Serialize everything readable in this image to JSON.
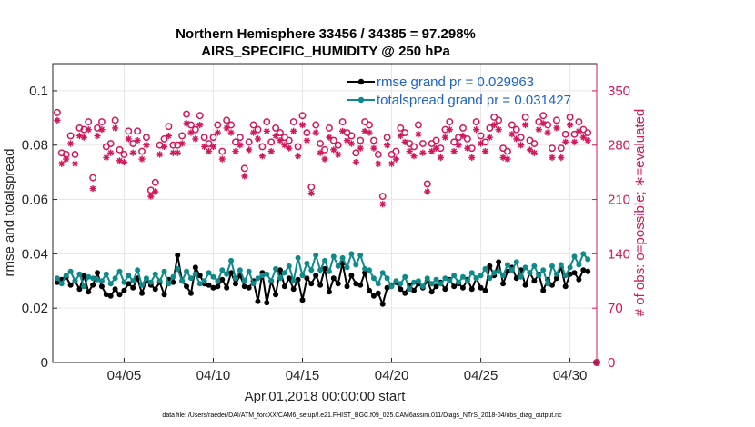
{
  "chart_data": {
    "type": "line",
    "title": "Northern Hemisphere 33456 / 34385 = 97.298%",
    "subtitle": "AIRS_SPECIFIC_HUMIDITY @ 250 hPa",
    "xlabel": "Apr.01,2018 00:00:00 start",
    "ylabel": "rmse and totalspread",
    "y2label": "# of obs: o=possible; ∗=evaluated",
    "footnote": "data file: /Users/raeder/DAI/ATM_forcXX/CAM6_setup/f.e21.FHIST_BGC.f09_025.CAM6assim.011/Diags_NTrS_2018-04/obs_diag_output.nc",
    "xlim": [
      1.0,
      31.5
    ],
    "ylim": [
      0,
      0.11
    ],
    "y2lim": [
      0,
      385
    ],
    "x_ticks": [
      5,
      10,
      15,
      20,
      25,
      30
    ],
    "x_tick_labels": [
      "04/05",
      "04/10",
      "04/15",
      "04/20",
      "04/25",
      "04/30"
    ],
    "y_ticks": [
      0,
      0.02,
      0.04,
      0.06,
      0.08,
      0.1
    ],
    "y_tick_labels": [
      "0",
      "0.02",
      "0.04",
      "0.06",
      "0.08",
      "0.1"
    ],
    "y2_ticks": [
      0,
      70,
      140,
      210,
      280,
      350
    ],
    "y2_tick_labels": [
      "0",
      "70",
      "140",
      "210",
      "280",
      "350"
    ],
    "grid": true,
    "legend_position": "top-right",
    "colors": {
      "rmse": "#000000",
      "spread": "#0e8a8a",
      "obs": "#d3175b",
      "axis": "#262626"
    },
    "series": [
      {
        "name": "rmse grand pr = 0.029963",
        "axis": "left",
        "x": [
          1.25,
          1.5,
          1.75,
          2.0,
          2.25,
          2.5,
          2.75,
          3.0,
          3.25,
          3.5,
          3.75,
          4.0,
          4.25,
          4.5,
          4.75,
          5.0,
          5.25,
          5.5,
          5.75,
          6.0,
          6.25,
          6.5,
          6.75,
          7.0,
          7.25,
          7.5,
          7.75,
          8.0,
          8.25,
          8.5,
          8.75,
          9.0,
          9.25,
          9.5,
          9.75,
          10.0,
          10.25,
          10.5,
          10.75,
          11.0,
          11.25,
          11.5,
          11.75,
          12.0,
          12.25,
          12.5,
          12.75,
          13.0,
          13.25,
          13.5,
          13.75,
          14.0,
          14.25,
          14.5,
          14.75,
          15.0,
          15.25,
          15.5,
          15.75,
          16.0,
          16.25,
          16.5,
          16.75,
          17.0,
          17.25,
          17.5,
          17.75,
          18.0,
          18.25,
          18.5,
          18.75,
          19.0,
          19.25,
          19.5,
          19.75,
          20.0,
          20.25,
          20.5,
          20.75,
          21.0,
          21.25,
          21.5,
          21.75,
          22.0,
          22.25,
          22.5,
          22.75,
          23.0,
          23.25,
          23.5,
          23.75,
          24.0,
          24.25,
          24.5,
          24.75,
          25.0,
          25.25,
          25.5,
          25.75,
          26.0,
          26.25,
          26.5,
          26.75,
          27.0,
          27.25,
          27.5,
          27.75,
          28.0,
          28.25,
          28.5,
          28.75,
          29.0,
          29.25,
          29.5,
          29.75,
          30.0,
          30.25,
          30.5,
          30.75,
          31.0
        ],
        "values": [
          0.0295,
          0.0305,
          0.0315,
          0.0285,
          0.03,
          0.027,
          0.032,
          0.026,
          0.0285,
          0.033,
          0.028,
          0.025,
          0.0245,
          0.027,
          0.025,
          0.0265,
          0.029,
          0.0275,
          0.031,
          0.0255,
          0.03,
          0.0285,
          0.027,
          0.0295,
          0.025,
          0.0305,
          0.0295,
          0.0395,
          0.03,
          0.028,
          0.0255,
          0.035,
          0.032,
          0.029,
          0.0285,
          0.0275,
          0.028,
          0.0305,
          0.0275,
          0.033,
          0.029,
          0.032,
          0.028,
          0.0275,
          0.03,
          0.0225,
          0.033,
          0.022,
          0.03,
          0.025,
          0.034,
          0.028,
          0.031,
          0.027,
          0.0305,
          0.023,
          0.031,
          0.029,
          0.032,
          0.0285,
          0.0345,
          0.026,
          0.031,
          0.029,
          0.0365,
          0.028,
          0.032,
          0.029,
          0.0285,
          0.033,
          0.0265,
          0.0245,
          0.0255,
          0.0215,
          0.0275,
          0.0285,
          0.0295,
          0.027,
          0.0255,
          0.0285,
          0.0265,
          0.029,
          0.0275,
          0.03,
          0.026,
          0.028,
          0.0295,
          0.027,
          0.0305,
          0.028,
          0.029,
          0.0275,
          0.0305,
          0.027,
          0.031,
          0.0275,
          0.0265,
          0.0355,
          0.032,
          0.037,
          0.029,
          0.0335,
          0.035,
          0.031,
          0.034,
          0.0285,
          0.033,
          0.03,
          0.0325,
          0.0265,
          0.0305,
          0.0285,
          0.031,
          0.035,
          0.028,
          0.0325,
          0.033,
          0.0305,
          0.034,
          0.0335
        ]
      },
      {
        "name": "totalspread grand pr = 0.031427",
        "axis": "left",
        "x": [
          1.25,
          1.5,
          1.75,
          2.0,
          2.25,
          2.5,
          2.75,
          3.0,
          3.25,
          3.5,
          3.75,
          4.0,
          4.25,
          4.5,
          4.75,
          5.0,
          5.25,
          5.5,
          5.75,
          6.0,
          6.25,
          6.5,
          6.75,
          7.0,
          7.25,
          7.5,
          7.75,
          8.0,
          8.25,
          8.5,
          8.75,
          9.0,
          9.25,
          9.5,
          9.75,
          10.0,
          10.25,
          10.5,
          10.75,
          11.0,
          11.25,
          11.5,
          11.75,
          12.0,
          12.25,
          12.5,
          12.75,
          13.0,
          13.25,
          13.5,
          13.75,
          14.0,
          14.25,
          14.5,
          14.75,
          15.0,
          15.25,
          15.5,
          15.75,
          16.0,
          16.25,
          16.5,
          16.75,
          17.0,
          17.25,
          17.5,
          17.75,
          18.0,
          18.25,
          18.5,
          18.75,
          19.0,
          19.25,
          19.5,
          19.75,
          20.0,
          20.25,
          20.5,
          20.75,
          21.0,
          21.25,
          21.5,
          21.75,
          22.0,
          22.25,
          22.5,
          22.75,
          23.0,
          23.25,
          23.5,
          23.75,
          24.0,
          24.25,
          24.5,
          24.75,
          25.0,
          25.25,
          25.5,
          25.75,
          26.0,
          26.25,
          26.5,
          26.75,
          27.0,
          27.25,
          27.5,
          27.75,
          28.0,
          28.25,
          28.5,
          28.75,
          29.0,
          29.25,
          29.5,
          29.75,
          30.0,
          30.25,
          30.5,
          30.75,
          31.0
        ],
        "values": [
          0.031,
          0.029,
          0.032,
          0.0335,
          0.03,
          0.0325,
          0.028,
          0.0315,
          0.031,
          0.0305,
          0.03,
          0.0325,
          0.029,
          0.031,
          0.0335,
          0.0295,
          0.032,
          0.03,
          0.034,
          0.0285,
          0.031,
          0.0295,
          0.0325,
          0.03,
          0.0335,
          0.029,
          0.0315,
          0.0345,
          0.03,
          0.0335,
          0.031,
          0.0325,
          0.029,
          0.03,
          0.033,
          0.0315,
          0.03,
          0.034,
          0.0325,
          0.0375,
          0.031,
          0.034,
          0.03,
          0.0335,
          0.029,
          0.031,
          0.032,
          0.0325,
          0.03,
          0.0345,
          0.031,
          0.033,
          0.0355,
          0.03,
          0.0385,
          0.032,
          0.0365,
          0.034,
          0.0395,
          0.034,
          0.0375,
          0.0335,
          0.039,
          0.0355,
          0.0385,
          0.035,
          0.04,
          0.036,
          0.0395,
          0.0345,
          0.034,
          0.031,
          0.029,
          0.033,
          0.031,
          0.028,
          0.03,
          0.029,
          0.0315,
          0.027,
          0.0295,
          0.03,
          0.028,
          0.031,
          0.029,
          0.0305,
          0.029,
          0.031,
          0.03,
          0.032,
          0.0295,
          0.0315,
          0.03,
          0.033,
          0.031,
          0.032,
          0.0345,
          0.031,
          0.033,
          0.0335,
          0.032,
          0.036,
          0.034,
          0.037,
          0.0315,
          0.035,
          0.033,
          0.0355,
          0.032,
          0.034,
          0.029,
          0.0355,
          0.0325,
          0.036,
          0.032,
          0.035,
          0.039,
          0.036,
          0.04,
          0.038
        ]
      },
      {
        "name": "obs possible (o)",
        "axis": "right",
        "x": [
          1.25,
          1.5,
          1.75,
          2.0,
          2.25,
          2.5,
          2.75,
          3.0,
          3.25,
          3.5,
          3.75,
          4.0,
          4.25,
          4.5,
          4.75,
          5.0,
          5.25,
          5.5,
          5.75,
          6.0,
          6.25,
          6.5,
          6.75,
          7.0,
          7.25,
          7.5,
          7.75,
          8.0,
          8.25,
          8.5,
          8.75,
          9.0,
          9.25,
          9.5,
          9.75,
          10.0,
          10.25,
          10.5,
          10.75,
          11.0,
          11.25,
          11.5,
          11.75,
          12.0,
          12.25,
          12.5,
          12.75,
          13.0,
          13.25,
          13.5,
          13.75,
          14.0,
          14.25,
          14.5,
          14.75,
          15.0,
          15.25,
          15.5,
          15.75,
          16.0,
          16.25,
          16.5,
          16.75,
          17.0,
          17.25,
          17.5,
          17.75,
          18.0,
          18.25,
          18.5,
          18.75,
          19.0,
          19.25,
          19.5,
          19.75,
          20.0,
          20.25,
          20.5,
          20.75,
          21.0,
          21.25,
          21.5,
          21.75,
          22.0,
          22.25,
          22.5,
          22.75,
          23.0,
          23.25,
          23.5,
          23.75,
          24.0,
          24.25,
          24.5,
          24.75,
          25.0,
          25.25,
          25.5,
          25.75,
          26.0,
          26.25,
          26.5,
          26.75,
          27.0,
          27.25,
          27.5,
          27.75,
          28.0,
          28.25,
          28.5,
          28.75,
          29.0,
          29.25,
          29.5,
          29.75,
          30.0,
          30.25,
          30.5,
          30.75,
          31.0
        ],
        "values": [
          322,
          270,
          268,
          292,
          268,
          302,
          300,
          310,
          238,
          302,
          310,
          278,
          282,
          312,
          274,
          268,
          298,
          282,
          298,
          272,
          290,
          222,
          232,
          280,
          288,
          304,
          280,
          280,
          292,
          320,
          306,
          300,
          318,
          290,
          282,
          290,
          306,
          272,
          312,
          306,
          284,
          290,
          250,
          284,
          306,
          300,
          278,
          310,
          284,
          302,
          296,
          290,
          286,
          310,
          278,
          318,
          296,
          226,
          306,
          282,
          274,
          302,
          286,
          280,
          310,
          296,
          292,
          270,
          286,
          310,
          306,
          286,
          268,
          214,
          290,
          268,
          272,
          302,
          296,
          282,
          278,
          306,
          282,
          230,
          282,
          286,
          276,
          300,
          310,
          284,
          290,
          302,
          288,
          276,
          310,
          292,
          284,
          302,
          316,
          312,
          276,
          272,
          306,
          300,
          290,
          316,
          286,
          282,
          310,
          318,
          306,
          276,
          312,
          276,
          294,
          316,
          294,
          310,
          300,
          296
        ]
      },
      {
        "name": "obs evaluated (∗)",
        "axis": "right",
        "x": [
          1.25,
          1.5,
          1.75,
          2.0,
          2.25,
          2.5,
          2.75,
          3.0,
          3.25,
          3.5,
          3.75,
          4.0,
          4.25,
          4.5,
          4.75,
          5.0,
          5.25,
          5.5,
          5.75,
          6.0,
          6.25,
          6.5,
          6.75,
          7.0,
          7.25,
          7.5,
          7.75,
          8.0,
          8.25,
          8.5,
          8.75,
          9.0,
          9.25,
          9.5,
          9.75,
          10.0,
          10.25,
          10.5,
          10.75,
          11.0,
          11.25,
          11.5,
          11.75,
          12.0,
          12.25,
          12.5,
          12.75,
          13.0,
          13.25,
          13.5,
          13.75,
          14.0,
          14.25,
          14.5,
          14.75,
          15.0,
          15.25,
          15.5,
          15.75,
          16.0,
          16.25,
          16.5,
          16.75,
          17.0,
          17.25,
          17.5,
          17.75,
          18.0,
          18.25,
          18.5,
          18.75,
          19.0,
          19.25,
          19.5,
          19.75,
          20.0,
          20.25,
          20.5,
          20.75,
          21.0,
          21.25,
          21.5,
          21.75,
          22.0,
          22.25,
          22.5,
          22.75,
          23.0,
          23.25,
          23.5,
          23.75,
          24.0,
          24.25,
          24.5,
          24.75,
          25.0,
          25.25,
          25.5,
          25.75,
          26.0,
          26.25,
          26.5,
          26.75,
          27.0,
          27.25,
          27.5,
          27.75,
          28.0,
          28.25,
          28.5,
          28.75,
          29.0,
          29.25,
          29.5,
          29.75,
          30.0,
          30.25,
          30.5,
          30.75,
          31.0
        ],
        "values": [
          312,
          256,
          262,
          282,
          256,
          292,
          290,
          300,
          224,
          292,
          300,
          264,
          270,
          302,
          260,
          258,
          288,
          270,
          286,
          262,
          280,
          214,
          220,
          268,
          278,
          292,
          270,
          270,
          282,
          308,
          296,
          288,
          306,
          278,
          272,
          278,
          296,
          262,
          302,
          296,
          272,
          280,
          240,
          274,
          296,
          288,
          266,
          298,
          272,
          292,
          286,
          280,
          276,
          298,
          266,
          306,
          286,
          218,
          296,
          270,
          262,
          290,
          274,
          268,
          298,
          286,
          282,
          258,
          276,
          298,
          296,
          276,
          256,
          204,
          280,
          256,
          262,
          292,
          284,
          272,
          266,
          294,
          270,
          220,
          272,
          276,
          264,
          290,
          300,
          272,
          280,
          292,
          276,
          264,
          300,
          282,
          272,
          290,
          306,
          300,
          264,
          262,
          294,
          288,
          280,
          306,
          274,
          270,
          300,
          308,
          296,
          264,
          302,
          264,
          284,
          306,
          284,
          298,
          290,
          286
        ]
      }
    ],
    "extra_points": [
      {
        "x": 31.5,
        "y2": 0,
        "marker": "filled-circle",
        "name": "obs possible at axis"
      }
    ]
  }
}
